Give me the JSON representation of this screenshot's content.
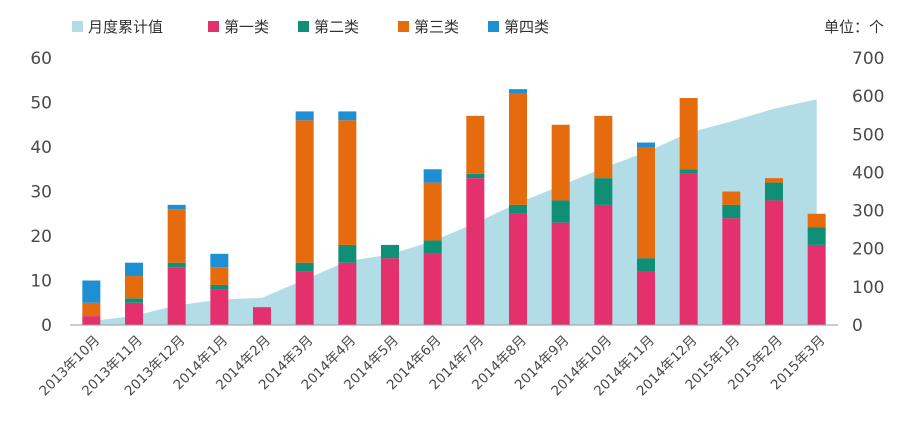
{
  "chart_data": {
    "type": "bar",
    "stacked": true,
    "unit_label": "单位：个",
    "legend_position": "top",
    "grid": false,
    "categories": [
      "2013年10月",
      "2013年11月",
      "2013年12月",
      "2014年1月",
      "2014年2月",
      "2014年3月",
      "2014年4月",
      "2014年5月",
      "2014年6月",
      "2014年7月",
      "2014年8月",
      "2014年9月",
      "2014年10月",
      "2014年11月",
      "2014年12月",
      "2015年1月",
      "2015年2月",
      "2015年3月"
    ],
    "ylim_left": [
      0,
      60
    ],
    "yticks_left": [
      "0",
      "10",
      "20",
      "30",
      "40",
      "50",
      "60"
    ],
    "ylim_right": [
      0,
      700
    ],
    "yticks_right": [
      "0",
      "100",
      "200",
      "300",
      "400",
      "500",
      "600",
      "700"
    ],
    "series": [
      {
        "name": "第一类",
        "color": "#e5306e",
        "axis": "left",
        "values": [
          2,
          5,
          13,
          8,
          4,
          12,
          14,
          15,
          16,
          33,
          25,
          23,
          27,
          12,
          34,
          24,
          28,
          18
        ]
      },
      {
        "name": "第二类",
        "color": "#0f8f76",
        "axis": "left",
        "values": [
          0,
          1,
          1,
          1,
          0,
          2,
          4,
          3,
          3,
          1,
          2,
          5,
          6,
          3,
          1,
          3,
          4,
          4
        ]
      },
      {
        "name": "第三类",
        "color": "#e66b0c",
        "axis": "left",
        "values": [
          3,
          5,
          12,
          4,
          0,
          32,
          28,
          0,
          13,
          13,
          25,
          17,
          14,
          25,
          16,
          3,
          1,
          3
        ]
      },
      {
        "name": "第四类",
        "color": "#1e8fd2",
        "axis": "left",
        "values": [
          5,
          3,
          1,
          3,
          0,
          2,
          2,
          0,
          3,
          0,
          1,
          0,
          0,
          1,
          0,
          0,
          0,
          0
        ]
      }
    ],
    "area_series": {
      "name": "月度累计值",
      "color": "#b3dde6",
      "axis": "right",
      "values": [
        10,
        24,
        51,
        67,
        71,
        119,
        167,
        185,
        220,
        267,
        320,
        365,
        412,
        453,
        504,
        534,
        567,
        592
      ]
    }
  }
}
